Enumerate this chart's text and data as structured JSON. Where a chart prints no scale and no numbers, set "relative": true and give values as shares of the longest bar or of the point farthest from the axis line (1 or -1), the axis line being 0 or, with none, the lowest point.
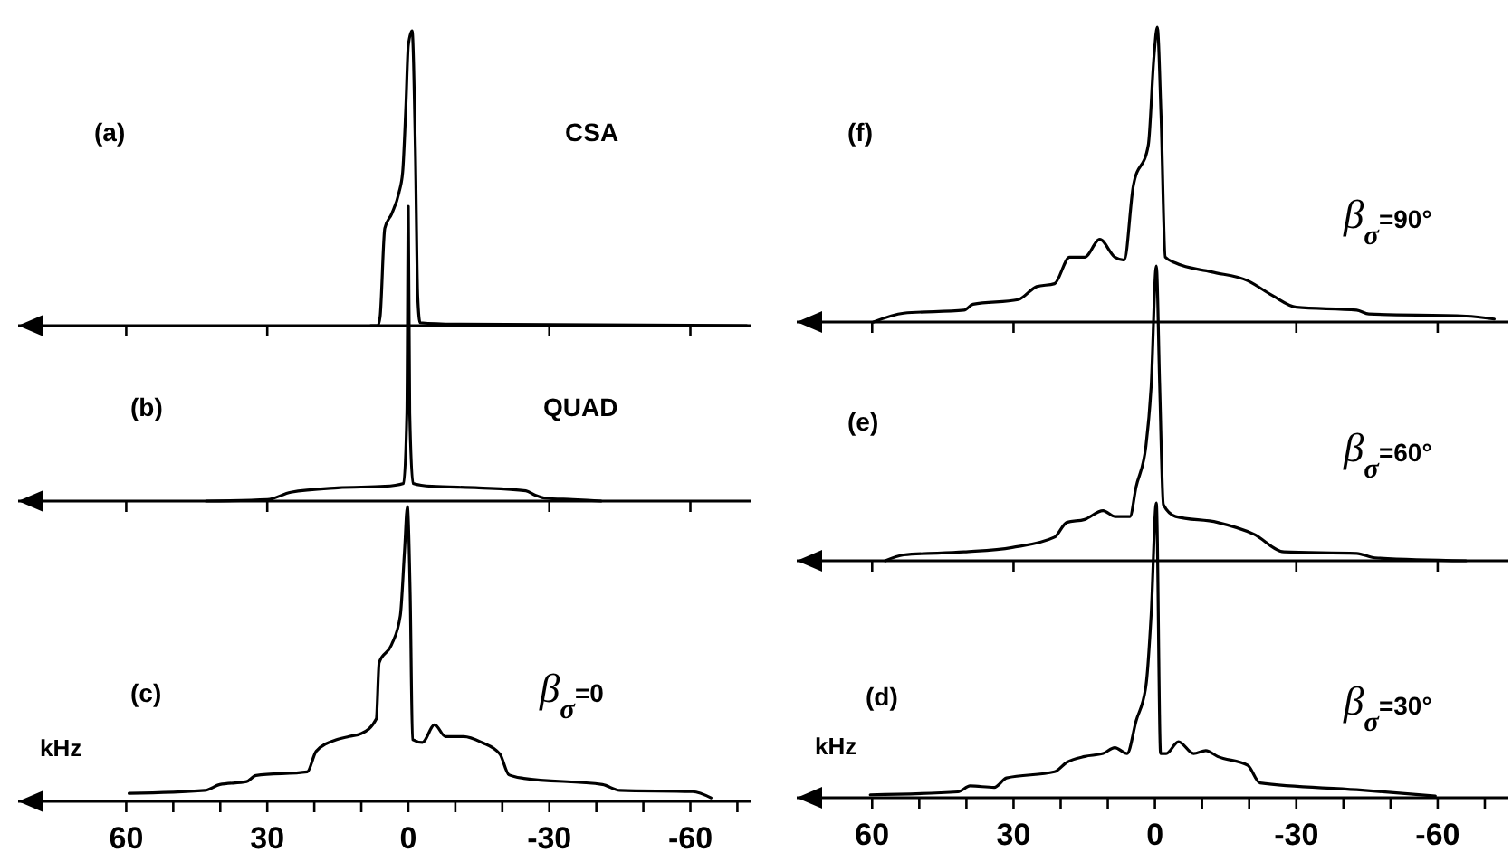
{
  "chart_data": [
    {
      "type": "line",
      "title": "(a)",
      "annotations": [
        "CSA"
      ],
      "relative": true,
      "xlim": [
        83,
        -73
      ],
      "tick_labels": false,
      "xticks": [
        {
          "value": 60,
          "label": null
        },
        {
          "value": 30,
          "label": null
        },
        {
          "value": -30,
          "label": null
        },
        {
          "value": -60,
          "label": null
        }
      ],
      "series": [
        {
          "color": "#000000",
          "x": [
            8,
            6.5,
            6,
            5,
            3.5,
            2,
            1.2,
            0.5,
            0,
            -0.8,
            -1.5,
            -2,
            -2.5,
            -10,
            -72
          ],
          "values": [
            0,
            0,
            0.03,
            0.33,
            0.38,
            0.45,
            0.52,
            0.75,
            0.95,
            1.0,
            0.6,
            0.1,
            0.01,
            0.005,
            0
          ]
        }
      ]
    },
    {
      "type": "line",
      "title": "(b)",
      "annotations": [
        "QUAD"
      ],
      "relative": true,
      "xlim": [
        83,
        -73
      ],
      "tick_labels": false,
      "xticks": [
        {
          "value": 60,
          "label": null
        },
        {
          "value": 30,
          "label": null
        },
        {
          "value": -30,
          "label": null
        },
        {
          "value": -60,
          "label": null
        }
      ],
      "series": [
        {
          "color": "#000000",
          "x": [
            43,
            30,
            25,
            15,
            5,
            1,
            0.3,
            0,
            -0.3,
            -1,
            -5,
            -15,
            -25,
            -27,
            -29,
            -35,
            -41
          ],
          "values": [
            0,
            0.005,
            0.03,
            0.045,
            0.05,
            0.06,
            0.3,
            1.0,
            0.3,
            0.06,
            0.05,
            0.045,
            0.035,
            0.02,
            0.01,
            0.005,
            0
          ]
        }
      ]
    },
    {
      "type": "line",
      "title": "(c)",
      "annotations": [
        "β$_{σ}$=0"
      ],
      "xlabel": "kHz",
      "relative": true,
      "xlim": [
        83,
        -73
      ],
      "tick_labels": "x",
      "xticks": [
        60,
        {
          "value": 50,
          "label": null
        },
        {
          "value": 40,
          "label": null
        },
        30,
        {
          "value": 20,
          "label": null
        },
        {
          "value": 10,
          "label": null
        },
        0,
        {
          "value": -10,
          "label": null
        },
        {
          "value": -20,
          "label": null
        },
        -30,
        {
          "value": -40,
          "label": null
        },
        {
          "value": -50,
          "label": null
        },
        -60,
        {
          "value": -70,
          "label": null
        }
      ],
      "series": [
        {
          "color": "#000000",
          "x": [
            59.4,
            43.3,
            40.1,
            34.4,
            32.4,
            21.5,
            19.6,
            15.1,
            12.6,
            10,
            6.8,
            6.2,
            3.6,
            1.7,
            0.8,
            0.2,
            -0.4,
            -0.9,
            -3,
            -5.6,
            -7.9,
            -11.8,
            -15.6,
            -19.5,
            -21.4,
            -24.6,
            -41.3,
            -45,
            -60.5,
            -64.4
          ],
          "values": [
            0.027,
            0.037,
            0.057,
            0.067,
            0.088,
            0.1,
            0.17,
            0.21,
            0.22,
            0.23,
            0.28,
            0.47,
            0.53,
            0.63,
            0.85,
            1.0,
            0.7,
            0.21,
            0.2,
            0.26,
            0.22,
            0.22,
            0.2,
            0.16,
            0.09,
            0.078,
            0.057,
            0.037,
            0.033,
            0.012
          ]
        }
      ]
    },
    {
      "type": "line",
      "title": "(f)",
      "annotations": [
        "β$_{σ}$=90°"
      ],
      "relative": true,
      "xlim": [
        76,
        -75
      ],
      "tick_labels": false,
      "xticks": [
        {
          "value": 60,
          "label": null
        },
        {
          "value": 30,
          "label": null
        },
        {
          "value": -30,
          "label": null
        },
        {
          "value": -60,
          "label": null
        }
      ],
      "series": [
        {
          "color": "#000000",
          "x": [
            59.7,
            53.3,
            40.5,
            38.6,
            29,
            25.1,
            21.3,
            18.1,
            14.9,
            11.7,
            8.5,
            6.5,
            4.6,
            1.4,
            0.2,
            -0.5,
            -1.3,
            -2.2,
            -4.4,
            -12,
            -19.7,
            -24.9,
            -30,
            -42.8,
            -45.4,
            -66,
            -72
          ],
          "values": [
            0,
            0.03,
            0.04,
            0.06,
            0.076,
            0.12,
            0.13,
            0.22,
            0.22,
            0.28,
            0.22,
            0.21,
            0.46,
            0.6,
            0.9,
            1.0,
            0.7,
            0.22,
            0.2,
            0.17,
            0.14,
            0.09,
            0.05,
            0.04,
            0.027,
            0.02,
            0.01
          ]
        }
      ]
    },
    {
      "type": "line",
      "title": "(e)",
      "annotations": [
        "β$_{σ}$=60°"
      ],
      "relative": true,
      "xlim": [
        76,
        -75
      ],
      "tick_labels": false,
      "xticks": [
        {
          "value": 60,
          "label": null
        },
        {
          "value": 30,
          "label": null
        },
        {
          "value": -30,
          "label": null
        },
        {
          "value": -60,
          "label": null
        }
      ],
      "series": [
        {
          "color": "#000000",
          "x": [
            57.2,
            53.3,
            40.5,
            30.3,
            21.3,
            18.7,
            14.9,
            11,
            8.5,
            5.3,
            4,
            1.9,
            0.8,
            -0.3,
            -1,
            -1.8,
            -4.4,
            -13.3,
            -21,
            -27.4,
            -42.8,
            -46.7,
            -66
          ],
          "values": [
            0,
            0.02,
            0.03,
            0.045,
            0.08,
            0.13,
            0.14,
            0.17,
            0.15,
            0.15,
            0.25,
            0.39,
            0.59,
            1.0,
            0.6,
            0.19,
            0.15,
            0.13,
            0.09,
            0.03,
            0.025,
            0.01,
            0
          ]
        }
      ]
    },
    {
      "type": "line",
      "title": "(d)",
      "annotations": [
        "β$_{σ}$=30°"
      ],
      "xlabel": "kHz",
      "relative": true,
      "xlim": [
        76,
        -75
      ],
      "tick_labels": "x",
      "xticks": [
        60,
        {
          "value": 50,
          "label": null
        },
        {
          "value": 40,
          "label": null
        },
        30,
        {
          "value": 20,
          "label": null
        },
        {
          "value": 10,
          "label": null
        },
        0,
        {
          "value": -10,
          "label": null
        },
        {
          "value": -20,
          "label": null
        },
        -30,
        {
          "value": -40,
          "label": null
        },
        {
          "value": -50,
          "label": null
        },
        -60,
        {
          "value": -70,
          "label": null
        }
      ],
      "series": [
        {
          "color": "#000000",
          "x": [
            60.4,
            41.8,
            39.2,
            34.1,
            31.5,
            21.3,
            18.7,
            14.9,
            11,
            8.5,
            5.9,
            4,
            1.9,
            0.8,
            -0.3,
            -1.2,
            -2.4,
            -5,
            -8.2,
            -10.8,
            -13.3,
            -19.7,
            -22.3,
            -42.8,
            -59.5
          ],
          "values": [
            0.01,
            0.02,
            0.04,
            0.035,
            0.067,
            0.088,
            0.12,
            0.14,
            0.15,
            0.17,
            0.15,
            0.26,
            0.38,
            0.62,
            1.0,
            0.15,
            0.15,
            0.19,
            0.15,
            0.16,
            0.14,
            0.11,
            0.05,
            0.027,
            0.006
          ]
        }
      ]
    }
  ]
}
